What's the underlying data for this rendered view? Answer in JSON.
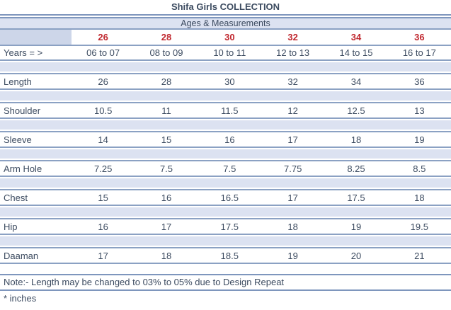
{
  "title": "Shifa Girls COLLECTION",
  "subtitle": "Ages & Measurements",
  "table": {
    "sizes": [
      "26",
      "28",
      "30",
      "32",
      "34",
      "36"
    ],
    "years_label": "Years = >",
    "years": [
      "06 to 07",
      "08 to 09",
      "10 to 11",
      "12 to 13",
      "14 to 15",
      "16 to 17"
    ],
    "rows": [
      {
        "label": "Length",
        "values": [
          "26",
          "28",
          "30",
          "32",
          "34",
          "36"
        ]
      },
      {
        "label": "Shoulder",
        "values": [
          "10.5",
          "11",
          "11.5",
          "12",
          "12.5",
          "13"
        ]
      },
      {
        "label": "Sleeve",
        "values": [
          "14",
          "15",
          "16",
          "17",
          "18",
          "19"
        ]
      },
      {
        "label": "Arm Hole",
        "values": [
          "7.25",
          "7.5",
          "7.5",
          "7.75",
          "8.25",
          "8.5"
        ]
      },
      {
        "label": "Chest",
        "values": [
          "15",
          "16",
          "16.5",
          "17",
          "17.5",
          "18"
        ]
      },
      {
        "label": "Hip",
        "values": [
          "16",
          "17",
          "17.5",
          "18",
          "19",
          "19.5"
        ]
      },
      {
        "label": "Daaman",
        "values": [
          "17",
          "18",
          "18.5",
          "19",
          "20",
          "21"
        ]
      }
    ]
  },
  "notes": {
    "note": "Note:- Length may be changed to 03% to 05% due to Design Repeat",
    "unit": "* inches"
  },
  "colors": {
    "accent_red": "#c0282f",
    "band_blue": "#dce2f1",
    "corner_blue": "#cdd6e9",
    "line_blue": "#8ba1c3",
    "text": "#3c4b60"
  }
}
